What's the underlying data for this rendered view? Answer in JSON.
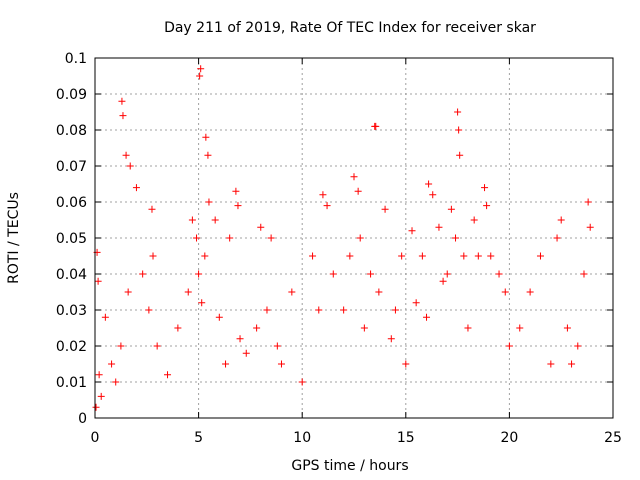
{
  "chart_data": {
    "type": "scatter",
    "title": "Day 211 of 2019, Rate Of TEC Index for receiver skar",
    "xlabel": "GPS time / hours",
    "ylabel": "ROTI / TECUs",
    "xlim": [
      0,
      25
    ],
    "ylim": [
      0,
      0.1
    ],
    "x_ticks": [
      0,
      5,
      10,
      15,
      20,
      25
    ],
    "x_tick_labels": [
      "0",
      "5",
      "10",
      "15",
      "20",
      "25"
    ],
    "y_ticks": [
      0,
      0.01,
      0.02,
      0.03,
      0.04,
      0.05,
      0.06,
      0.07,
      0.08,
      0.09,
      0.1
    ],
    "y_tick_labels": [
      "0",
      "0.01",
      "0.02",
      "0.03",
      "0.04",
      "0.05",
      "0.06",
      "0.07",
      "0.08",
      "0.09",
      "0.1"
    ],
    "grid": true,
    "marker": "+",
    "colors": {
      "series": "#ff0000",
      "grid": "#a0a0a0",
      "axes": "#000000"
    },
    "series": [
      {
        "x": [
          0.05,
          0.1,
          0.15,
          0.2,
          0.3,
          0.5,
          0.8,
          1.0,
          1.25,
          1.3,
          1.35,
          1.5,
          1.6,
          1.7,
          2.0,
          2.3,
          2.6,
          2.75,
          2.8,
          3.0,
          3.5,
          4.0,
          4.5,
          4.7,
          4.9,
          5.0,
          5.05,
          5.1,
          5.15,
          5.3,
          5.35,
          5.45,
          5.5,
          5.8,
          6.0,
          6.3,
          6.5,
          6.8,
          6.9,
          7.0,
          7.3,
          7.8,
          8.0,
          8.3,
          8.5,
          8.8,
          9.0,
          9.5,
          10.0,
          10.5,
          10.8,
          11.0,
          11.2,
          11.5,
          12.0,
          12.3,
          12.5,
          12.7,
          12.8,
          13.0,
          13.3,
          13.5,
          13.55,
          13.7,
          14.0,
          14.3,
          14.5,
          14.8,
          15.0,
          15.3,
          15.5,
          15.8,
          16.0,
          16.1,
          16.3,
          16.6,
          16.8,
          17.0,
          17.2,
          17.4,
          17.5,
          17.55,
          17.6,
          17.8,
          18.0,
          18.3,
          18.5,
          18.8,
          18.9,
          19.1,
          19.5,
          19.8,
          20.0,
          20.5,
          21.0,
          21.5,
          22.0,
          22.3,
          22.5,
          22.8,
          23.0,
          23.3,
          23.6,
          23.8,
          23.9
        ],
        "y": [
          0.003,
          0.046,
          0.038,
          0.012,
          0.006,
          0.028,
          0.015,
          0.01,
          0.02,
          0.088,
          0.084,
          0.073,
          0.035,
          0.07,
          0.064,
          0.04,
          0.03,
          0.058,
          0.045,
          0.02,
          0.012,
          0.025,
          0.035,
          0.055,
          0.05,
          0.04,
          0.095,
          0.097,
          0.032,
          0.045,
          0.078,
          0.073,
          0.06,
          0.055,
          0.028,
          0.015,
          0.05,
          0.063,
          0.059,
          0.022,
          0.018,
          0.025,
          0.053,
          0.03,
          0.05,
          0.02,
          0.015,
          0.035,
          0.01,
          0.045,
          0.03,
          0.062,
          0.059,
          0.04,
          0.03,
          0.045,
          0.067,
          0.063,
          0.05,
          0.025,
          0.04,
          0.081,
          0.081,
          0.035,
          0.058,
          0.022,
          0.03,
          0.045,
          0.015,
          0.052,
          0.032,
          0.045,
          0.028,
          0.065,
          0.062,
          0.053,
          0.038,
          0.04,
          0.058,
          0.05,
          0.085,
          0.08,
          0.073,
          0.045,
          0.025,
          0.055,
          0.045,
          0.064,
          0.059,
          0.045,
          0.04,
          0.035,
          0.02,
          0.025,
          0.035,
          0.045,
          0.015,
          0.05,
          0.055,
          0.025,
          0.015,
          0.02,
          0.04,
          0.06,
          0.053
        ]
      }
    ]
  }
}
